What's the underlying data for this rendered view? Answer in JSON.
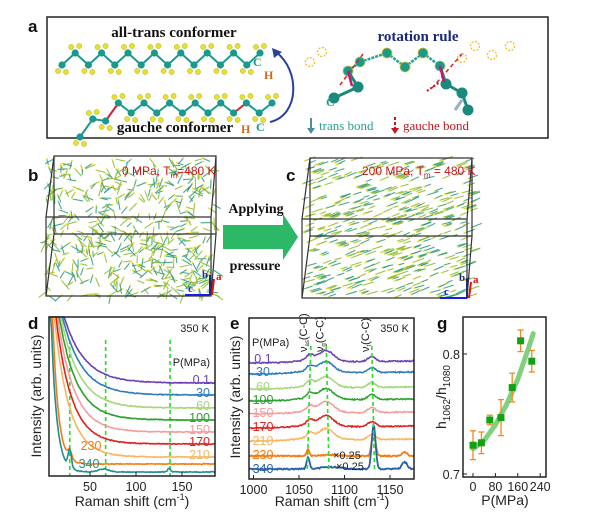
{
  "panel_labels": {
    "a": "a",
    "b": "b",
    "c": "c",
    "d": "d",
    "e": "e",
    "g": "g"
  },
  "panel_a": {
    "all_trans": "all-trans conformer",
    "gauche": "gauche conformer",
    "rotation_rule": "rotation rule",
    "atom_c": "C",
    "atom_h": "H",
    "trans_bond": "trans bond",
    "gauche_bond": "gauche bond",
    "colors": {
      "carbon": "#1a9a8c",
      "hydrogen": "#e8e030",
      "trans": "#2aa08f",
      "gauche": "#c8141c",
      "title": "#1a2a7a"
    }
  },
  "panel_b": {
    "cond_pre": "0 MPa, T",
    "cond_sub": "m",
    "cond_post": "=480 K",
    "axis_a": "a",
    "axis_b": "b",
    "axis_c": "c"
  },
  "panel_c": {
    "cond_pre": "200 MPa, T",
    "cond_sub": "m",
    "cond_post": " = 480 K",
    "axis_a": "a",
    "axis_b": "b",
    "axis_c": "c"
  },
  "arrow": {
    "top": "Applying",
    "bottom": "pressure",
    "color": "#2cb866"
  },
  "chart_data": [
    {
      "panel": "d",
      "type": "line",
      "annotation": "350 K",
      "legend_title": "P(MPa)",
      "xlabel_pre": "Raman shift (cm",
      "xlabel_sup": "-1",
      "xlabel_post": ")",
      "ylabel": "Intensity (arb. units)",
      "xlim": [
        5,
        186
      ],
      "xticks": [
        "50",
        "100",
        "150"
      ],
      "xtick_values": [
        50,
        100,
        150
      ],
      "guide_lines": [
        28,
        67,
        137
      ],
      "series": [
        {
          "name": "0.1",
          "color": "#6b3fb3"
        },
        {
          "name": "30",
          "color": "#2b7bbf"
        },
        {
          "name": "60",
          "color": "#a4d67c"
        },
        {
          "name": "100",
          "color": "#2ca02c"
        },
        {
          "name": "150",
          "color": "#f59c9c"
        },
        {
          "name": "170",
          "color": "#e0201e"
        },
        {
          "name": "210",
          "color": "#f7b560"
        },
        {
          "name": "230",
          "color": "#f57b12"
        },
        {
          "name": "340",
          "color": "#1f8f8f"
        }
      ]
    },
    {
      "panel": "e",
      "type": "line",
      "annotation": "350 K",
      "legend_title": "P(MPa)",
      "xlabel_pre": "Raman shift (cm",
      "xlabel_sup": "-1",
      "xlabel_post": ")",
      "ylabel": "Intensity (arb. units)",
      "xlim": [
        995,
        1177
      ],
      "xticks": [
        "1000",
        "1050",
        "1100",
        "1150"
      ],
      "xtick_values": [
        1000,
        1050,
        1100,
        1150
      ],
      "peaks": [
        {
          "label_pre": "ν",
          "label_sub": "as",
          "label_post": "(C-C)",
          "x": 1062
        },
        {
          "label_pre": "ν",
          "label_sub": "g",
          "label_post": "(C-C)",
          "x": 1080
        },
        {
          "label_pre": "ν",
          "label_sub": "t",
          "label_post": "(C-C)",
          "x": 1130
        }
      ],
      "scale_notes": [
        "×0.25",
        "×0.25"
      ],
      "series": [
        {
          "name": "0.1",
          "color": "#6b3fb3"
        },
        {
          "name": "30",
          "color": "#2b7bbf"
        },
        {
          "name": "60",
          "color": "#a4d67c"
        },
        {
          "name": "100",
          "color": "#2ca02c"
        },
        {
          "name": "150",
          "color": "#f59c9c"
        },
        {
          "name": "170",
          "color": "#e0201e"
        },
        {
          "name": "210",
          "color": "#f7b560"
        },
        {
          "name": "230",
          "color": "#f57b12"
        },
        {
          "name": "340",
          "color": "#2a5fa8"
        }
      ]
    },
    {
      "panel": "g",
      "type": "scatter",
      "ylabel_pre": "h",
      "ylabel_sub1": "1062",
      "ylabel_mid": "/h",
      "ylabel_sub2": "1080",
      "xlabel": "P(MPa)",
      "xlim": [
        -36,
        262
      ],
      "ylim": [
        0.698,
        0.833
      ],
      "xticks": [
        "0",
        "80",
        "160",
        "240"
      ],
      "xtick_values": [
        0,
        80,
        160,
        240
      ],
      "yticks": [
        "0.7",
        "0.8"
      ],
      "ytick_values": [
        0.7,
        0.8
      ],
      "x": [
        0,
        30,
        60,
        100,
        140,
        170,
        210
      ],
      "y": [
        0.724,
        0.726,
        0.745,
        0.747,
        0.772,
        0.811,
        0.794
      ],
      "yerr": [
        0.012,
        0.009,
        0.004,
        0.015,
        0.012,
        0.009,
        0.009
      ],
      "fit": {
        "x": [
          0,
          40,
          80,
          120,
          160,
          200,
          215
        ],
        "y": [
          0.721,
          0.728,
          0.741,
          0.758,
          0.779,
          0.806,
          0.817
        ]
      },
      "colors": {
        "marker": "#13a013",
        "error": "#f5891e",
        "fit": "#7fd07f"
      }
    }
  ]
}
